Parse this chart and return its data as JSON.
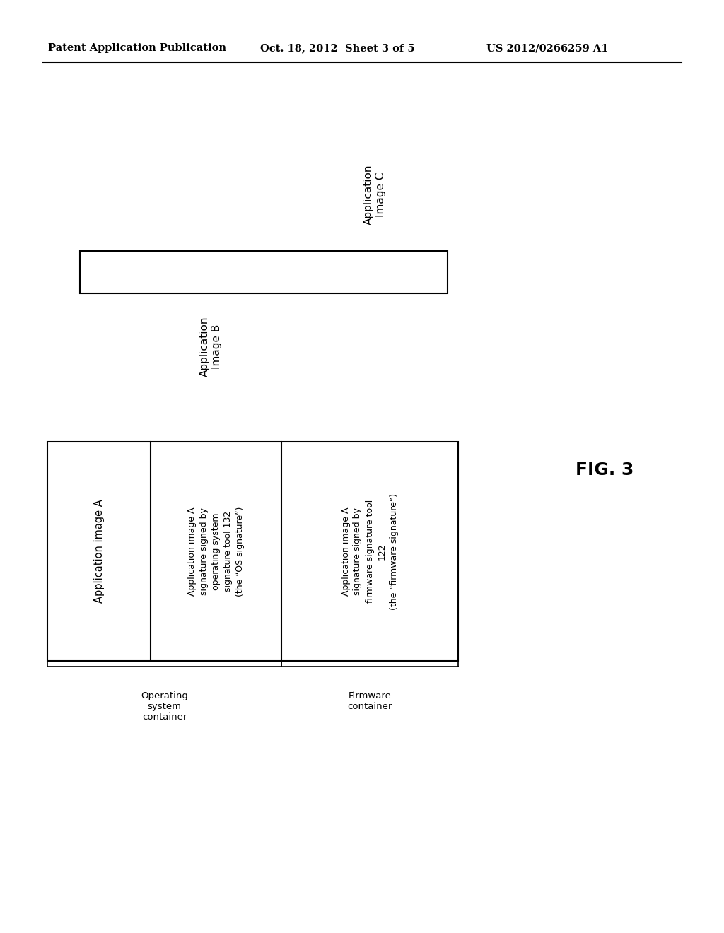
{
  "bg_color": "#ffffff",
  "header_left": "Patent Application Publication",
  "header_mid": "Oct. 18, 2012  Sheet 3 of 5",
  "header_right": "US 2012/0266259 A1",
  "fig_label": "FIG. 3",
  "app_c_label": "Application\nImage C",
  "app_b_label": "Application\nImage B",
  "cell1_label": "Application image A",
  "cell2_label": "Application image A\nsignature signed by\noperating system\nsignature tool 132\n(the “OS signature”)",
  "cell3_label": "Application image A\nsignature signed by\nfirmware signature tool\n122\n(the “firmware signature”)",
  "os_container_label": "Operating\nsystem\ncontainer",
  "fw_container_label": "Firmware\ncontainer"
}
